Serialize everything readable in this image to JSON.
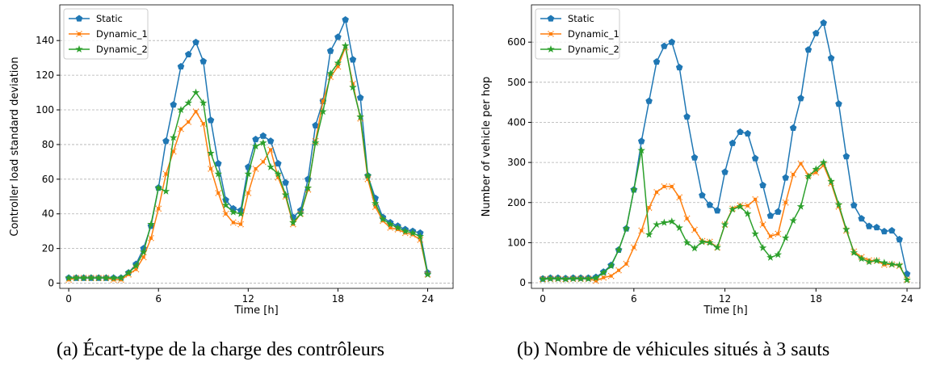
{
  "chart_data": [
    {
      "type": "line",
      "caption": "(a) Écart-type de la charge des contrôleurs",
      "xlabel": "Time [h]",
      "ylabel": "Controller load standard deviation",
      "x": [
        0,
        0.5,
        1,
        1.5,
        2,
        2.5,
        3,
        3.5,
        4,
        4.5,
        5,
        5.5,
        6,
        6.5,
        7,
        7.5,
        8,
        8.5,
        9,
        9.5,
        10,
        10.5,
        11,
        11.5,
        12,
        12.5,
        13,
        13.5,
        14,
        14.5,
        15,
        15.5,
        16,
        16.5,
        17,
        17.5,
        18,
        18.5,
        19,
        19.5,
        20,
        20.5,
        21,
        21.5,
        22,
        22.5,
        23,
        23.5,
        24
      ],
      "xlim": [
        -0.6,
        25.7
      ],
      "xticks": [
        0,
        6,
        12,
        18,
        24
      ],
      "ylim": [
        -3,
        160.6
      ],
      "yticks": [
        0,
        20,
        40,
        60,
        80,
        100,
        120,
        140
      ],
      "grid": true,
      "legend": "upper left",
      "series": [
        {
          "name": "Static",
          "color": "#1f77b4",
          "marker": "pentagon",
          "values": [
            3,
            3,
            3,
            3,
            3,
            3,
            3,
            3,
            6,
            11,
            20,
            33,
            55,
            82,
            103,
            125,
            132,
            139,
            128,
            94,
            69,
            48,
            43,
            42,
            67,
            83,
            85,
            82,
            69,
            58,
            38,
            42,
            60,
            91,
            105,
            134,
            142,
            152,
            129,
            107,
            62,
            49,
            38,
            35,
            33,
            31,
            30,
            29,
            6
          ]
        },
        {
          "name": "Dynamic_1",
          "color": "#ff7f0e",
          "marker": "x",
          "values": [
            2,
            3,
            3,
            3,
            3,
            3,
            2,
            2,
            5,
            8,
            15,
            26,
            43,
            63,
            76,
            89,
            93,
            99,
            92,
            66,
            52,
            40,
            35,
            34,
            52,
            66,
            70,
            77,
            61,
            50,
            34,
            40,
            54,
            82,
            105,
            119,
            125,
            136,
            115,
            95,
            60,
            44,
            36,
            32,
            31,
            29,
            28,
            25,
            5
          ]
        },
        {
          "name": "Dynamic_2",
          "color": "#2ca02c",
          "marker": "star",
          "values": [
            3,
            3,
            3,
            3,
            3,
            3,
            3,
            3,
            6,
            10,
            18,
            34,
            55,
            53,
            84,
            100,
            104,
            110,
            104,
            75,
            63,
            45,
            41,
            40,
            63,
            79,
            81,
            67,
            63,
            51,
            35,
            40,
            55,
            81,
            99,
            121,
            127,
            137,
            113,
            96,
            62,
            46,
            37,
            34,
            32,
            30,
            29,
            27,
            5
          ]
        }
      ]
    },
    {
      "type": "line",
      "caption": "(b) Nombre de véhicules situés à 3 sauts",
      "xlabel": "Time [h]",
      "ylabel": "Number of vehicle per hop",
      "x": [
        0,
        0.5,
        1,
        1.5,
        2,
        2.5,
        3,
        3.5,
        4,
        4.5,
        5,
        5.5,
        6,
        6.5,
        7,
        7.5,
        8,
        8.5,
        9,
        9.5,
        10,
        10.5,
        11,
        11.5,
        12,
        12.5,
        13,
        13.5,
        14,
        14.5,
        15,
        15.5,
        16,
        16.5,
        17,
        17.5,
        18,
        18.5,
        19,
        19.5,
        20,
        20.5,
        21,
        21.5,
        22,
        22.5,
        23,
        23.5,
        24
      ],
      "xlim": [
        -0.75,
        24.85
      ],
      "xticks": [
        0,
        6,
        12,
        18,
        24
      ],
      "ylim": [
        -14,
        693
      ],
      "yticks": [
        0,
        100,
        200,
        300,
        400,
        500,
        600
      ],
      "grid": true,
      "legend": "upper left",
      "series": [
        {
          "name": "Static",
          "color": "#1f77b4",
          "marker": "pentagon",
          "values": [
            10,
            12,
            12,
            11,
            12,
            12,
            12,
            14,
            27,
            44,
            82,
            135,
            232,
            353,
            453,
            551,
            590,
            600,
            537,
            414,
            312,
            218,
            194,
            180,
            276,
            348,
            376,
            372,
            310,
            243,
            167,
            177,
            262,
            386,
            460,
            581,
            622,
            648,
            560,
            446,
            315,
            193,
            160,
            141,
            138,
            128,
            130,
            108,
            22
          ]
        },
        {
          "name": "Dynamic_1",
          "color": "#ff7f0e",
          "marker": "x",
          "values": [
            9,
            10,
            10,
            9,
            10,
            10,
            10,
            5,
            13,
            17,
            31,
            47,
            88,
            130,
            187,
            226,
            240,
            240,
            213,
            160,
            132,
            104,
            102,
            88,
            145,
            185,
            193,
            192,
            208,
            145,
            116,
            122,
            200,
            270,
            297,
            268,
            275,
            293,
            248,
            190,
            130,
            78,
            64,
            56,
            55,
            45,
            46,
            42,
            8
          ]
        },
        {
          "name": "Dynamic_2",
          "color": "#2ca02c",
          "marker": "star",
          "values": [
            9,
            10,
            10,
            9,
            10,
            10,
            10,
            12,
            25,
            42,
            82,
            135,
            232,
            330,
            120,
            145,
            150,
            153,
            137,
            100,
            86,
            102,
            100,
            88,
            145,
            183,
            190,
            172,
            122,
            87,
            63,
            70,
            112,
            155,
            190,
            265,
            283,
            300,
            253,
            195,
            133,
            75,
            60,
            52,
            55,
            50,
            46,
            44,
            7
          ]
        }
      ]
    }
  ]
}
